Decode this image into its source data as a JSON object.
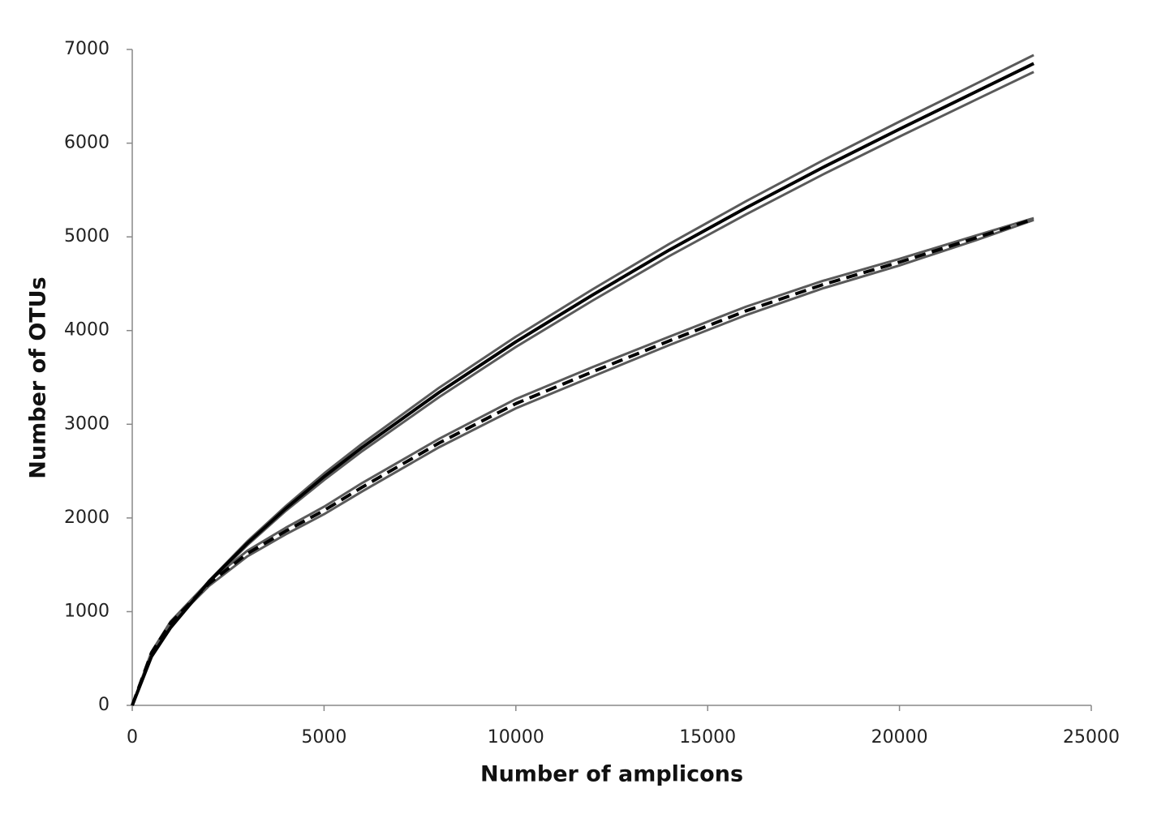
{
  "chart_data": {
    "type": "line",
    "xlabel": "Number of amplicons",
    "ylabel": "Number of OTUs",
    "x": [
      0,
      500,
      1000,
      2000,
      3000,
      4000,
      5000,
      6000,
      8000,
      10000,
      12000,
      14000,
      16000,
      18000,
      20000,
      22000,
      23500
    ],
    "series": [
      {
        "color": "#5a5a5a",
        "width": 3,
        "dashed": false,
        "values": [
          0,
          520,
          835,
          1330,
          1750,
          2125,
          2475,
          2795,
          3390,
          3935,
          4440,
          4925,
          5380,
          5815,
          6230,
          6635,
          6940
        ]
      },
      {
        "color": "#5a5a5a",
        "width": 3,
        "dashed": false,
        "values": [
          0,
          520,
          825,
          1310,
          1710,
          2075,
          2405,
          2715,
          3290,
          3825,
          4320,
          4795,
          5240,
          5665,
          6070,
          6465,
          6760
        ]
      },
      {
        "color": "#5a5a5a",
        "width": 3,
        "dashed": false,
        "values": [
          0,
          570,
          895,
          1325,
          1650,
          1895,
          2120,
          2375,
          2845,
          3270,
          3610,
          3935,
          4255,
          4530,
          4765,
          5015,
          5200
        ]
      },
      {
        "color": "#5a5a5a",
        "width": 3,
        "dashed": false,
        "values": [
          0,
          550,
          865,
          1275,
          1590,
          1825,
          2040,
          2285,
          2755,
          3170,
          3510,
          3845,
          4165,
          4450,
          4695,
          4965,
          5180
        ]
      },
      {
        "color": "#000000",
        "width": 4,
        "dashed": false,
        "values": [
          0,
          520,
          830,
          1320,
          1730,
          2100,
          2440,
          2755,
          3340,
          3880,
          4380,
          4860,
          5310,
          5740,
          6150,
          6550,
          6850
        ]
      },
      {
        "color": "#000000",
        "width": 4,
        "dashed": true,
        "values": [
          0,
          560,
          880,
          1300,
          1620,
          1860,
          2080,
          2330,
          2800,
          3220,
          3560,
          3890,
          4210,
          4490,
          4730,
          4990,
          5190
        ]
      }
    ],
    "xlim": [
      0,
      25000
    ],
    "xticks": [
      0,
      5000,
      10000,
      15000,
      20000,
      25000
    ],
    "ylim": [
      0,
      7000
    ],
    "yticks": [
      0,
      1000,
      2000,
      3000,
      4000,
      5000,
      6000,
      7000
    ],
    "grid": false
  }
}
